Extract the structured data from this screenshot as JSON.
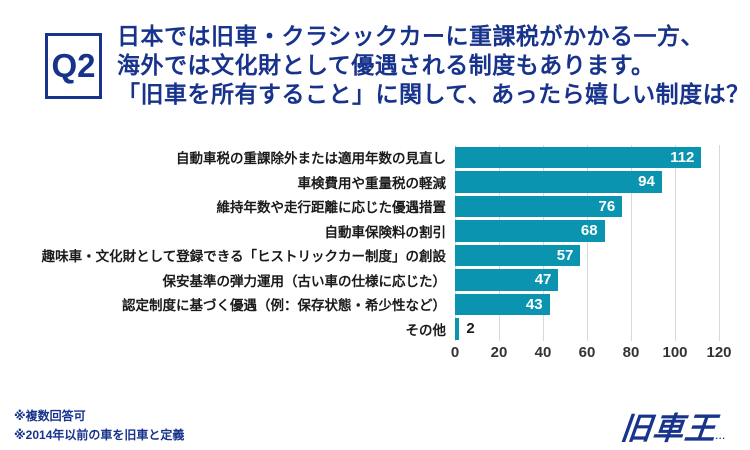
{
  "header": {
    "q_label": "Q2",
    "title_lines": [
      "日本では旧車・クラシックカーに重課税がかかる一方、",
      "海外では文化財として優遇される制度もあります。",
      "「旧車を所有すること」に関して、あったら嬉しい制度は？"
    ]
  },
  "chart_data": {
    "type": "bar",
    "orientation": "horizontal",
    "categories": [
      "自動車税の重課除外または適用年数の見直し",
      "車検費用や重量税の軽減",
      "維持年数や走行距離に応じた優遇措置",
      "自動車保険料の割引",
      "趣味車・文化財として登録できる「ヒストリックカー制度」の創設",
      "保安基準の弾力運用（古い車の仕様に応じた）",
      "認定制度に基づく優遇（例：保存状態・希少性など）",
      "その他"
    ],
    "values": [
      112,
      94,
      76,
      68,
      57,
      47,
      43,
      2
    ],
    "xlim": [
      0,
      120
    ],
    "x_ticks": [
      0,
      20,
      40,
      60,
      80,
      100,
      120
    ],
    "grid": true,
    "legend": false,
    "bar_color": "#0a94b0",
    "value_label_inside_color": "#ffffff",
    "value_label_outside_color": "#1a1a1a"
  },
  "footnotes": [
    "※複数回答可",
    "※2014年以前の車を旧車と定義"
  ],
  "logo": {
    "text": "旧車王",
    "dots": "..."
  },
  "colors": {
    "navy": "#17338c",
    "teal": "#0a94b0",
    "gridline": "#d9d9d9"
  }
}
